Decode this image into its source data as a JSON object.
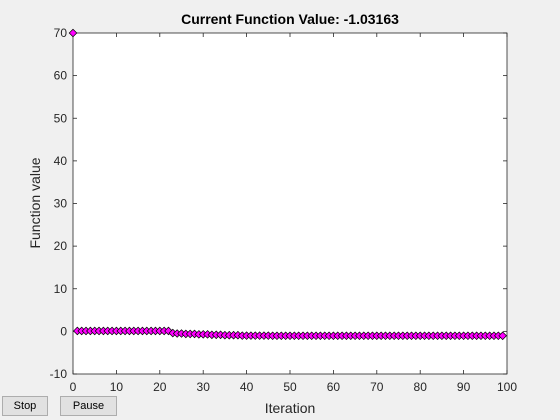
{
  "window": {
    "background": "#f0f0f0"
  },
  "controls": {
    "stop_label": "Stop",
    "pause_label": "Pause"
  },
  "chart_data": {
    "type": "scatter",
    "title": "Current Function Value: -1.03163",
    "xlabel": "Iteration",
    "ylabel": "Function value",
    "xlim": [
      0,
      100
    ],
    "ylim": [
      -10,
      70
    ],
    "xticks": [
      0,
      10,
      20,
      30,
      40,
      50,
      60,
      70,
      80,
      90,
      100
    ],
    "yticks": [
      -10,
      0,
      10,
      20,
      30,
      40,
      50,
      60,
      70
    ],
    "grid": false,
    "marker": "diamond",
    "marker_color": "#ff00ff",
    "marker_edge_color": "#000000",
    "series": [
      {
        "x": [
          0,
          1,
          2,
          3,
          4,
          5,
          6,
          7,
          8,
          9,
          10,
          11,
          12,
          13,
          14,
          15,
          16,
          17,
          18,
          19,
          20,
          21,
          22,
          23,
          24,
          25,
          26,
          27,
          28,
          29,
          30,
          31,
          32,
          33,
          34,
          35,
          36,
          37,
          38,
          39,
          40,
          41,
          42,
          43,
          44,
          45,
          46,
          47,
          48,
          49,
          50,
          51,
          52,
          53,
          54,
          55,
          56,
          57,
          58,
          59,
          60,
          61,
          62,
          63,
          64,
          65,
          66,
          67,
          68,
          69,
          70,
          71,
          72,
          73,
          74,
          75,
          76,
          77,
          78,
          79,
          80,
          81,
          82,
          83,
          84,
          85,
          86,
          87,
          88,
          89,
          90,
          91,
          92,
          93,
          94,
          95,
          96,
          97,
          98,
          99
        ],
        "y": [
          70,
          0.1,
          0.1,
          0.1,
          0.1,
          0.1,
          0.1,
          0.1,
          0.1,
          0.1,
          0.1,
          0.1,
          0.1,
          0.1,
          0.1,
          0.1,
          0.1,
          0.1,
          0.1,
          0.1,
          0.1,
          0.1,
          0.1,
          -0.4,
          -0.5,
          -0.5,
          -0.6,
          -0.6,
          -0.6,
          -0.7,
          -0.7,
          -0.7,
          -0.8,
          -0.8,
          -0.8,
          -0.9,
          -0.9,
          -0.9,
          -0.9,
          -1.0,
          -1.0,
          -1.0,
          -1.0,
          -1.0,
          -1.0,
          -1.0,
          -1.03,
          -1.03,
          -1.03,
          -1.03,
          -1.03,
          -1.03,
          -1.03,
          -1.03,
          -1.03,
          -1.03,
          -1.03,
          -1.03,
          -1.03,
          -1.03,
          -1.03,
          -1.03,
          -1.03,
          -1.03,
          -1.03,
          -1.03,
          -1.03,
          -1.03,
          -1.03,
          -1.03,
          -1.03,
          -1.03,
          -1.03,
          -1.03,
          -1.03,
          -1.03,
          -1.03,
          -1.03,
          -1.03,
          -1.03,
          -1.03,
          -1.03,
          -1.03,
          -1.03,
          -1.03,
          -1.03,
          -1.03,
          -1.03,
          -1.03,
          -1.03,
          -1.03,
          -1.03,
          -1.03,
          -1.03,
          -1.03,
          -1.03,
          -1.03,
          -1.03,
          -1.03,
          -1.03163
        ]
      }
    ]
  }
}
